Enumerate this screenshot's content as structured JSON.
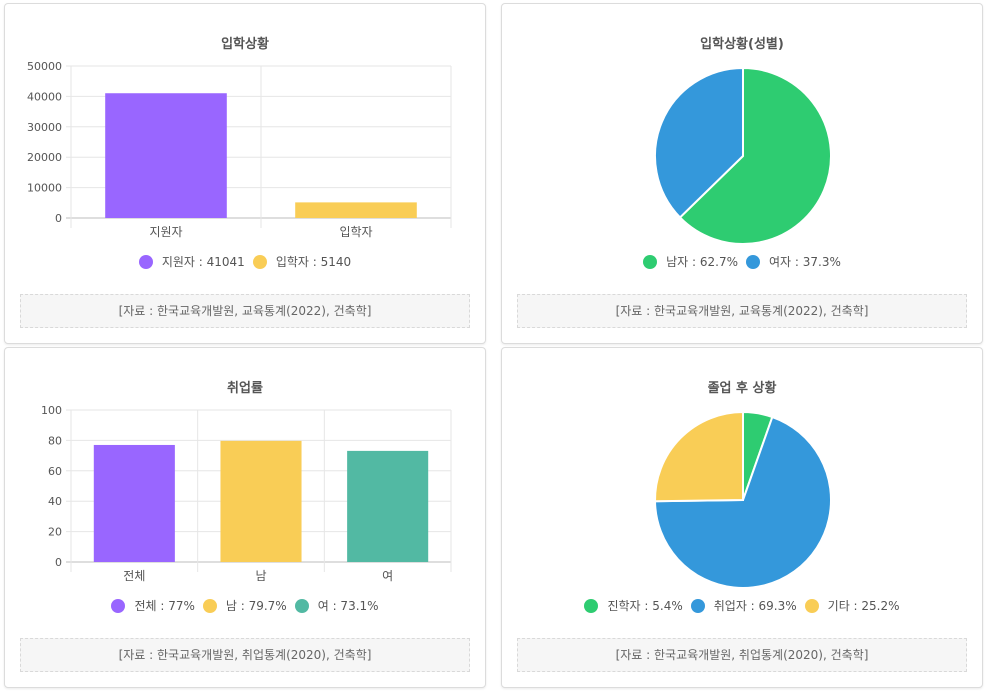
{
  "sources": {
    "admission": "[자료 : 한국교육개발원, 교육통계(2022), 건축학]",
    "employment": "[자료 : 한국교육개발원, 취업통계(2020), 건축학]"
  },
  "chart_data": [
    {
      "id": "c1",
      "type": "bar",
      "title": "입학상황",
      "categories": [
        "지원자",
        "입학자"
      ],
      "values": [
        41041,
        5140
      ],
      "colors": [
        "#9966ff",
        "#f9cd56"
      ],
      "ylim": [
        0,
        50000
      ],
      "yticks": [
        0,
        10000,
        20000,
        30000,
        40000,
        50000
      ],
      "legend": [
        "지원자 : 41041",
        "입학자 : 5140"
      ],
      "legend_position": "bottom",
      "grid": true
    },
    {
      "id": "c2",
      "type": "pie",
      "title": "입학상황(성별)",
      "labels": [
        "남자",
        "여자"
      ],
      "values": [
        62.7,
        37.3
      ],
      "colors": [
        "#2ecc71",
        "#3498db"
      ],
      "legend": [
        "남자 : 62.7%",
        "여자 : 37.3%"
      ],
      "legend_position": "bottom"
    },
    {
      "id": "c3",
      "type": "bar",
      "title": "취업률",
      "categories": [
        "전체",
        "남",
        "여"
      ],
      "values": [
        77,
        79.7,
        73.1
      ],
      "colors": [
        "#9966ff",
        "#f9cd56",
        "#52b9a3"
      ],
      "ylim": [
        0,
        100
      ],
      "yticks": [
        0,
        20,
        40,
        60,
        80,
        100
      ],
      "legend": [
        "전체 : 77%",
        "남 : 79.7%",
        "여 : 73.1%"
      ],
      "legend_position": "bottom",
      "grid": true
    },
    {
      "id": "c4",
      "type": "pie",
      "title": "졸업 후 상황",
      "labels": [
        "진학자",
        "취업자",
        "기타"
      ],
      "values": [
        5.4,
        69.3,
        25.2
      ],
      "colors": [
        "#2ecc71",
        "#3498db",
        "#f9cd56"
      ],
      "legend": [
        "진학자 : 5.4%",
        "취업자 : 69.3%",
        "기타 : 25.2%"
      ],
      "legend_position": "bottom"
    }
  ]
}
